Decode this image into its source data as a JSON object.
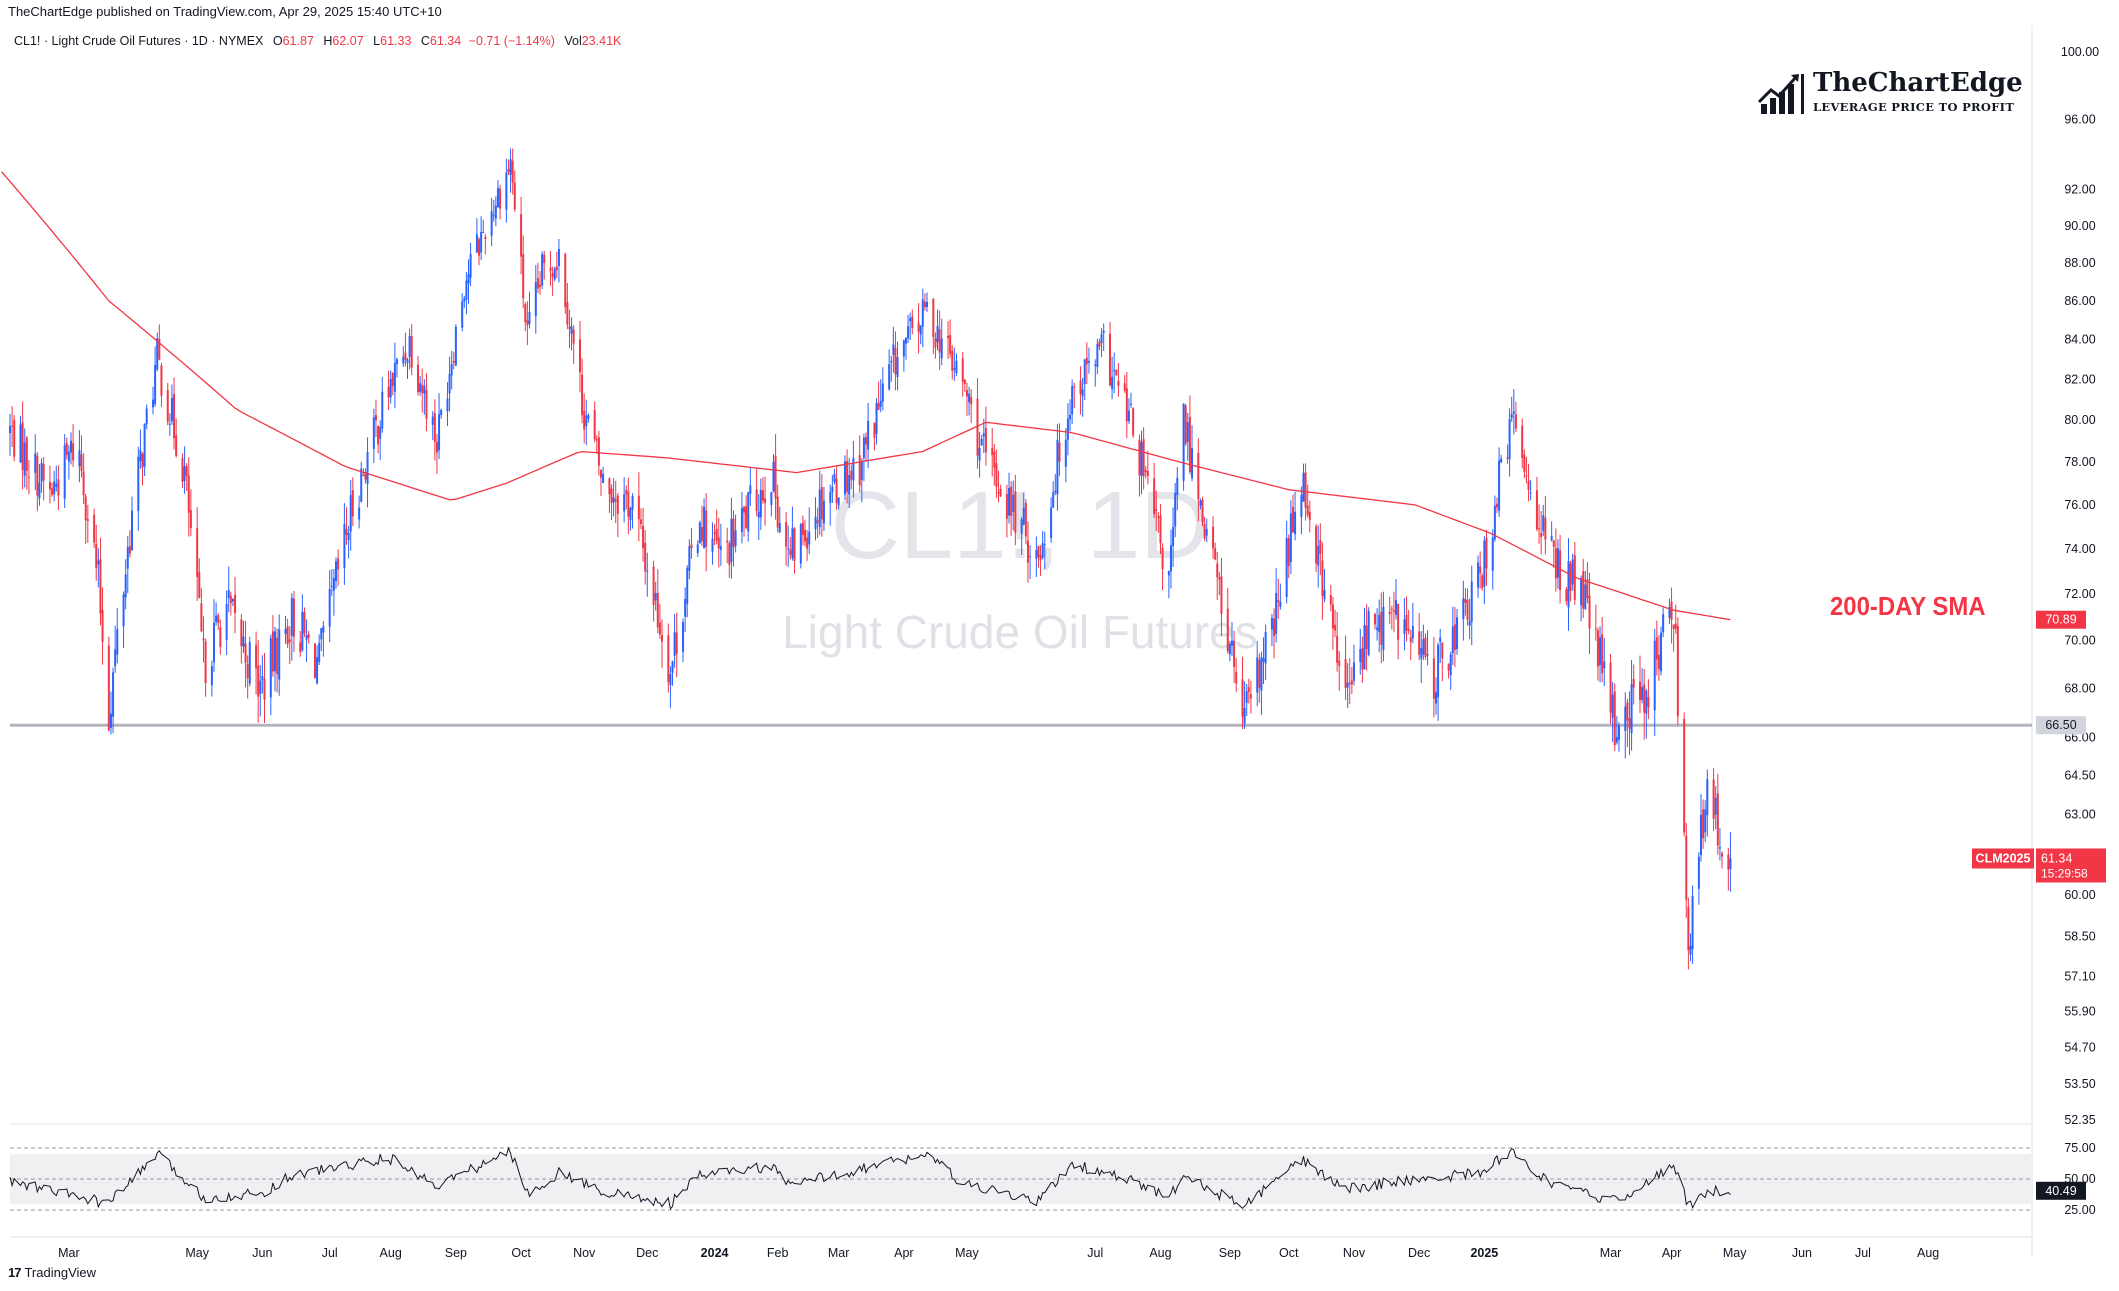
{
  "header": {
    "published": "TheChartEdge published on TradingView.com, Apr 29, 2025 15:40 UTC+10"
  },
  "legend": {
    "symbol": "CL1! · Light Crude Oil Futures · 1D · NYMEX",
    "o_label": "O",
    "o": "61.87",
    "h_label": "H",
    "h": "62.07",
    "l_label": "L",
    "l": "61.33",
    "c_label": "C",
    "c": "61.34",
    "change": "−0.71 (−1.14%)",
    "vol_label": "Vol",
    "vol": "23.41K"
  },
  "watermark": {
    "symbol": "CL1!, 1D",
    "name": "Light Crude Oil Futures"
  },
  "brand": {
    "name": "TheChartEdge",
    "tagline": "LEVERAGE PRICE TO PROFIT"
  },
  "annotation": {
    "sma_label": "200-DAY SMA"
  },
  "badges": {
    "sma_value": "70.89",
    "support_value": "66.50",
    "contract": "CLM2025",
    "last_price": "61.34",
    "countdown": "15:29:58",
    "rsi_value": "40.49"
  },
  "footer": {
    "logo": "17",
    "brand": "TradingView"
  },
  "colors": {
    "up": "#2962ff",
    "down": "#f23645",
    "sma": "#f23645",
    "support": "#b2b5be",
    "rsi": "#131722",
    "axis_text": "#131722"
  },
  "chart_data": {
    "type": "candlestick",
    "price_scale": "log",
    "ylim": [
      52.35,
      100.0
    ],
    "y_ticks": [
      "100.00",
      "96.00",
      "92.00",
      "90.00",
      "88.00",
      "86.00",
      "84.00",
      "82.00",
      "80.00",
      "78.00",
      "76.00",
      "74.00",
      "72.00",
      "70.00",
      "68.00",
      "66.00",
      "64.50",
      "63.00",
      "60.00",
      "58.50",
      "57.10",
      "55.90",
      "54.70",
      "53.50",
      "52.35"
    ],
    "x_ticks": [
      "Mar",
      "May",
      "Jun",
      "Jul",
      "Aug",
      "Sep",
      "Oct",
      "Nov",
      "Dec",
      "2024",
      "Feb",
      "Mar",
      "Apr",
      "May",
      "Jul",
      "Aug",
      "Sep",
      "Oct",
      "Nov",
      "Dec",
      "2025",
      "Mar",
      "Apr",
      "May",
      "Jun",
      "Jul",
      "Aug"
    ],
    "x_ticks_bold": [
      "2024",
      "2025"
    ],
    "price_anchors": [
      [
        "2023-02-01",
        79.5
      ],
      [
        "2023-02-20",
        76.5
      ],
      [
        "2023-03-05",
        79.0
      ],
      [
        "2023-03-15",
        72.5
      ],
      [
        "2023-03-20",
        67.0
      ],
      [
        "2023-03-31",
        75.5
      ],
      [
        "2023-04-12",
        83.0
      ],
      [
        "2023-04-25",
        77.5
      ],
      [
        "2023-05-04",
        69.0
      ],
      [
        "2023-05-15",
        71.5
      ],
      [
        "2023-05-31",
        68.0
      ],
      [
        "2023-06-15",
        71.0
      ],
      [
        "2023-06-28",
        69.0
      ],
      [
        "2023-07-14",
        76.0
      ],
      [
        "2023-07-31",
        81.5
      ],
      [
        "2023-08-10",
        84.0
      ],
      [
        "2023-08-23",
        79.0
      ],
      [
        "2023-09-05",
        87.0
      ],
      [
        "2023-09-27",
        93.5
      ],
      [
        "2023-10-05",
        84.0
      ],
      [
        "2023-10-12",
        87.5
      ],
      [
        "2023-10-20",
        88.5
      ],
      [
        "2023-10-31",
        81.0
      ],
      [
        "2023-11-10",
        77.0
      ],
      [
        "2023-11-24",
        76.0
      ],
      [
        "2023-12-12",
        68.8
      ],
      [
        "2023-12-26",
        75.5
      ],
      [
        "2024-01-05",
        73.5
      ],
      [
        "2024-01-29",
        77.5
      ],
      [
        "2024-02-06",
        73.5
      ],
      [
        "2024-02-23",
        76.5
      ],
      [
        "2024-03-11",
        78.0
      ],
      [
        "2024-03-28",
        83.0
      ],
      [
        "2024-04-12",
        85.5
      ],
      [
        "2024-04-30",
        81.5
      ],
      [
        "2024-05-08",
        78.5
      ],
      [
        "2024-06-04",
        73.5
      ],
      [
        "2024-06-20",
        81.5
      ],
      [
        "2024-07-05",
        83.5
      ],
      [
        "2024-07-19",
        79.5
      ],
      [
        "2024-08-05",
        72.5
      ],
      [
        "2024-08-12",
        80.0
      ],
      [
        "2024-09-10",
        66.5
      ],
      [
        "2024-09-25",
        71.0
      ],
      [
        "2024-10-07",
        77.5
      ],
      [
        "2024-10-28",
        67.5
      ],
      [
        "2024-11-08",
        70.5
      ],
      [
        "2024-11-22",
        71.0
      ],
      [
        "2024-12-09",
        68.5
      ],
      [
        "2024-12-31",
        72.5
      ],
      [
        "2025-01-15",
        80.0
      ],
      [
        "2025-02-03",
        73.5
      ],
      [
        "2025-02-18",
        72.0
      ],
      [
        "2025-03-05",
        66.5
      ],
      [
        "2025-03-20",
        68.0
      ],
      [
        "2025-04-02",
        71.5
      ],
      [
        "2025-04-09",
        58.5
      ],
      [
        "2025-04-14",
        61.5
      ],
      [
        "2025-04-18",
        63.5
      ],
      [
        "2025-04-29",
        61.34
      ]
    ],
    "sma_anchors": [
      [
        "2023-01-28",
        93.0
      ],
      [
        "2023-03-20",
        86.0
      ],
      [
        "2023-05-20",
        80.5
      ],
      [
        "2023-07-10",
        77.8
      ],
      [
        "2023-08-30",
        76.2
      ],
      [
        "2023-09-25",
        77.0
      ],
      [
        "2023-10-30",
        78.5
      ],
      [
        "2023-12-10",
        78.2
      ],
      [
        "2024-02-10",
        77.5
      ],
      [
        "2024-04-10",
        78.5
      ],
      [
        "2024-05-10",
        79.9
      ],
      [
        "2024-06-20",
        79.4
      ],
      [
        "2024-08-10",
        78.0
      ],
      [
        "2024-10-01",
        76.7
      ],
      [
        "2024-11-30",
        76.0
      ],
      [
        "2025-01-05",
        74.7
      ],
      [
        "2025-02-15",
        72.7
      ],
      [
        "2025-04-02",
        71.3
      ],
      [
        "2025-04-29",
        70.89
      ]
    ],
    "support_level": 66.5,
    "rsi": {
      "ylim": [
        25,
        75
      ],
      "y_ticks": [
        "75.00",
        "50.00",
        "25.00"
      ],
      "band": [
        30,
        70
      ],
      "anchors": [
        [
          "2023-02-01",
          48
        ],
        [
          "2023-03-20",
          30
        ],
        [
          "2023-04-12",
          70
        ],
        [
          "2023-05-04",
          35
        ],
        [
          "2023-05-31",
          38
        ],
        [
          "2023-06-15",
          53
        ],
        [
          "2023-07-31",
          67
        ],
        [
          "2023-08-23",
          45
        ],
        [
          "2023-09-27",
          72
        ],
        [
          "2023-10-05",
          38
        ],
        [
          "2023-10-20",
          55
        ],
        [
          "2023-11-10",
          40
        ],
        [
          "2023-12-12",
          30
        ],
        [
          "2023-12-26",
          53
        ],
        [
          "2024-01-29",
          60
        ],
        [
          "2024-02-06",
          45
        ],
        [
          "2024-03-11",
          58
        ],
        [
          "2024-04-12",
          70
        ],
        [
          "2024-04-30",
          45
        ],
        [
          "2024-06-04",
          32
        ],
        [
          "2024-06-20",
          62
        ],
        [
          "2024-07-19",
          48
        ],
        [
          "2024-08-05",
          35
        ],
        [
          "2024-08-12",
          52
        ],
        [
          "2024-09-10",
          28
        ],
        [
          "2024-10-07",
          65
        ],
        [
          "2024-10-28",
          42
        ],
        [
          "2024-11-22",
          48
        ],
        [
          "2024-12-31",
          55
        ],
        [
          "2025-01-15",
          73
        ],
        [
          "2025-02-03",
          45
        ],
        [
          "2025-03-05",
          32
        ],
        [
          "2025-04-02",
          61
        ],
        [
          "2025-04-09",
          28
        ],
        [
          "2025-04-18",
          40
        ],
        [
          "2025-04-29",
          40.49
        ]
      ]
    }
  }
}
